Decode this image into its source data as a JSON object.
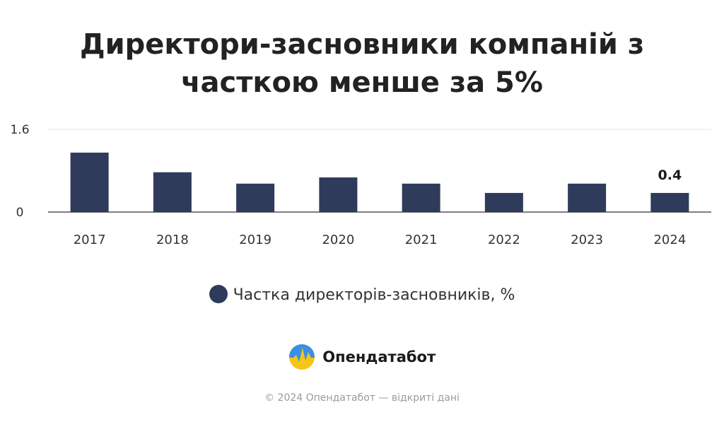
{
  "chart_data": {
    "type": "bar",
    "title": [
      "Директори-засновники компаній з",
      "часткою менше за 5%"
    ],
    "categories": [
      "2017",
      "2018",
      "2019",
      "2020",
      "2021",
      "2022",
      "2023",
      "2024"
    ],
    "series": [
      {
        "name": "Частка директорів-засновників, %",
        "values": [
          1.15,
          0.77,
          0.55,
          0.67,
          0.55,
          0.37,
          0.55,
          0.37
        ],
        "color": "#2e3b5b"
      }
    ],
    "data_labels": [
      null,
      null,
      null,
      null,
      null,
      null,
      null,
      "0.4"
    ],
    "yticks": [
      "0",
      "1.6"
    ],
    "ylim": [
      0,
      1.6
    ],
    "grid": true,
    "legend_position": "bottom"
  },
  "brand": {
    "name": "Опендатабот"
  },
  "footer": {
    "text": "© 2024 Опендатабот — відкриті дані"
  }
}
